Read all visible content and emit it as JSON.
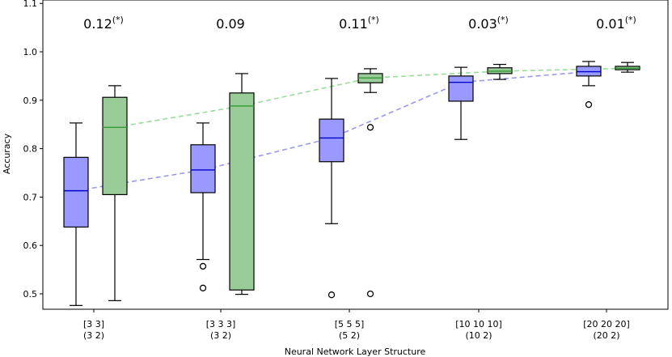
{
  "chart_data": {
    "type": "box",
    "xlabel": "Neural Network Layer Structure",
    "ylabel": "Accuracy",
    "ylim": [
      0.47,
      1.1
    ],
    "yticks": [
      0.5,
      0.6,
      0.7,
      0.8,
      0.9,
      1.0,
      1.1
    ],
    "ytick_labels": [
      "0.5",
      "0.6",
      "0.7",
      "0.8",
      "0.9",
      "1.0",
      "1.1"
    ],
    "groups": [
      {
        "line1": "[3 3]",
        "line2": "(3 2)",
        "annotation": "0.12",
        "annotation_marker": "(*)"
      },
      {
        "line1": "[3 3 3]",
        "line2": "(3 2)",
        "annotation": "0.09",
        "annotation_marker": ""
      },
      {
        "line1": "[5 5 5]",
        "line2": "(5 2)",
        "annotation": "0.11",
        "annotation_marker": "(*)"
      },
      {
        "line1": "[10 10 10]",
        "line2": "(10 2)",
        "annotation": "0.03",
        "annotation_marker": "(*)"
      },
      {
        "line1": "[20 20 20]",
        "line2": "(20 2)",
        "annotation": "0.01",
        "annotation_marker": "(*)"
      }
    ],
    "series": [
      {
        "color": "#9999ff",
        "edge": "#000000",
        "median_color": "#0000cc",
        "line_color": "#9999ee",
        "boxes": [
          {
            "whislo": 0.476,
            "q1": 0.638,
            "med": 0.713,
            "q3": 0.782,
            "whishi": 0.853,
            "fliers": []
          },
          {
            "whislo": 0.571,
            "q1": 0.709,
            "med": 0.756,
            "q3": 0.808,
            "whishi": 0.853,
            "fliers": [
              0.557,
              0.512
            ]
          },
          {
            "whislo": 0.645,
            "q1": 0.773,
            "med": 0.822,
            "q3": 0.861,
            "whishi": 0.945,
            "fliers": [
              0.498
            ]
          },
          {
            "whislo": 0.819,
            "q1": 0.898,
            "med": 0.937,
            "q3": 0.95,
            "whishi": 0.968,
            "fliers": []
          },
          {
            "whislo": 0.93,
            "q1": 0.95,
            "med": 0.959,
            "q3": 0.97,
            "whishi": 0.98,
            "fliers": [
              0.891
            ]
          }
        ]
      },
      {
        "color": "#99cc99",
        "edge": "#000000",
        "median_color": "#339933",
        "line_color": "#99dd99",
        "boxes": [
          {
            "whislo": 0.486,
            "q1": 0.705,
            "med": 0.844,
            "q3": 0.906,
            "whishi": 0.93,
            "fliers": []
          },
          {
            "whislo": 0.499,
            "q1": 0.508,
            "med": 0.888,
            "q3": 0.915,
            "whishi": 0.955,
            "fliers": []
          },
          {
            "whislo": 0.916,
            "q1": 0.936,
            "med": 0.946,
            "q3": 0.955,
            "whishi": 0.965,
            "fliers": [
              0.844,
              0.5
            ]
          },
          {
            "whislo": 0.943,
            "q1": 0.955,
            "med": 0.96,
            "q3": 0.967,
            "whishi": 0.974,
            "fliers": []
          },
          {
            "whislo": 0.958,
            "q1": 0.963,
            "med": 0.966,
            "q3": 0.97,
            "whishi": 0.978,
            "fliers": []
          }
        ]
      }
    ],
    "grid": false,
    "legend": "none"
  }
}
